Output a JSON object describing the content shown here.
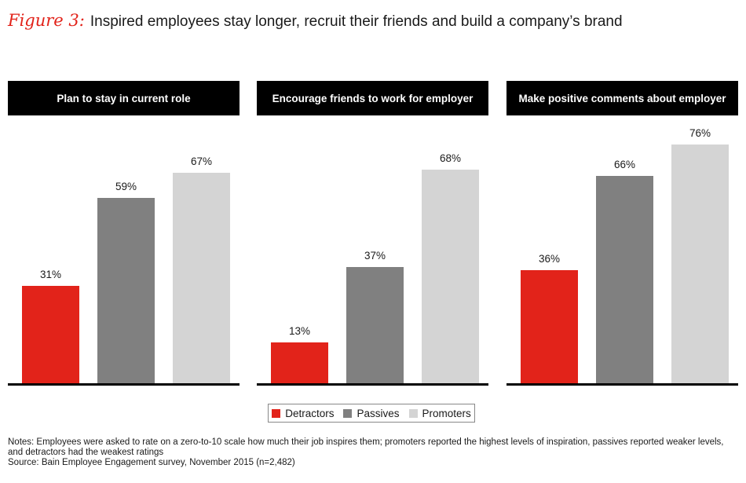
{
  "figure": {
    "label": "Figure 3:",
    "title": "Inspired employees stay longer, recruit their friends and build a company’s brand"
  },
  "chart_data": {
    "type": "bar",
    "unit": "%",
    "ylim": [
      0,
      80
    ],
    "series_colors": {
      "Detractors": "#e2231a",
      "Passives": "#808080",
      "Promoters": "#d4d4d4"
    },
    "legend": {
      "position": "bottom-center",
      "items": [
        "Detractors",
        "Passives",
        "Promoters"
      ]
    },
    "panels": [
      {
        "title": "Plan to stay in current role",
        "categories": [
          "Detractors",
          "Passives",
          "Promoters"
        ],
        "values": [
          31,
          59,
          67
        ],
        "labels": [
          "31%",
          "59%",
          "67%"
        ]
      },
      {
        "title": "Encourage friends to work for employer",
        "categories": [
          "Detractors",
          "Passives",
          "Promoters"
        ],
        "values": [
          13,
          37,
          68
        ],
        "labels": [
          "13%",
          "37%",
          "68%"
        ]
      },
      {
        "title": "Make positive comments about employer",
        "categories": [
          "Detractors",
          "Passives",
          "Promoters"
        ],
        "values": [
          36,
          66,
          76
        ],
        "labels": [
          "36%",
          "66%",
          "76%"
        ]
      }
    ]
  },
  "notes": {
    "text": "Notes: Employees were asked to rate on a zero-to-10 scale how much their job inspires them; promoters reported the highest levels of inspiration, passives reported weaker levels, and detractors had the weakest ratings",
    "source": "Source: Bain Employee Engagement survey, November 2015 (n=2,482)"
  }
}
